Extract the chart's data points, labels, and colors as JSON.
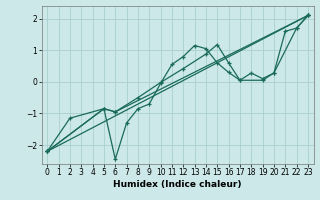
{
  "xlabel": "Humidex (Indice chaleur)",
  "bg_color": "#cce8e8",
  "grid_color": "#aacfcf",
  "line_color": "#1a6b5a",
  "xlim": [
    -0.5,
    23.5
  ],
  "ylim": [
    -2.6,
    2.4
  ],
  "xticks": [
    0,
    1,
    2,
    3,
    4,
    5,
    6,
    7,
    8,
    9,
    10,
    11,
    12,
    13,
    14,
    15,
    16,
    17,
    18,
    19,
    20,
    21,
    22,
    23
  ],
  "yticks": [
    -2,
    -1,
    0,
    1,
    2
  ],
  "lines": [
    {
      "x": [
        0,
        2,
        5,
        6,
        7,
        8,
        9,
        10,
        11,
        12,
        13,
        14,
        15,
        16,
        17,
        18,
        19,
        20,
        21,
        22,
        23
      ],
      "y": [
        -2.2,
        -1.15,
        -0.85,
        -2.45,
        -1.3,
        -0.85,
        -0.7,
        -0.05,
        0.55,
        0.8,
        1.15,
        1.05,
        0.6,
        0.3,
        0.05,
        0.28,
        0.1,
        0.28,
        1.6,
        1.7,
        2.1
      ]
    },
    {
      "x": [
        0,
        5,
        6,
        8,
        10,
        12,
        14,
        15,
        16,
        17,
        19,
        20,
        22,
        23
      ],
      "y": [
        -2.2,
        -0.85,
        -0.95,
        -0.5,
        -0.02,
        0.42,
        0.88,
        1.18,
        0.6,
        0.05,
        0.05,
        0.28,
        1.7,
        2.1
      ]
    },
    {
      "x": [
        0,
        5,
        6,
        23
      ],
      "y": [
        -2.2,
        -0.85,
        -0.95,
        2.1
      ]
    },
    {
      "x": [
        0,
        23
      ],
      "y": [
        -2.2,
        2.1
      ]
    }
  ]
}
